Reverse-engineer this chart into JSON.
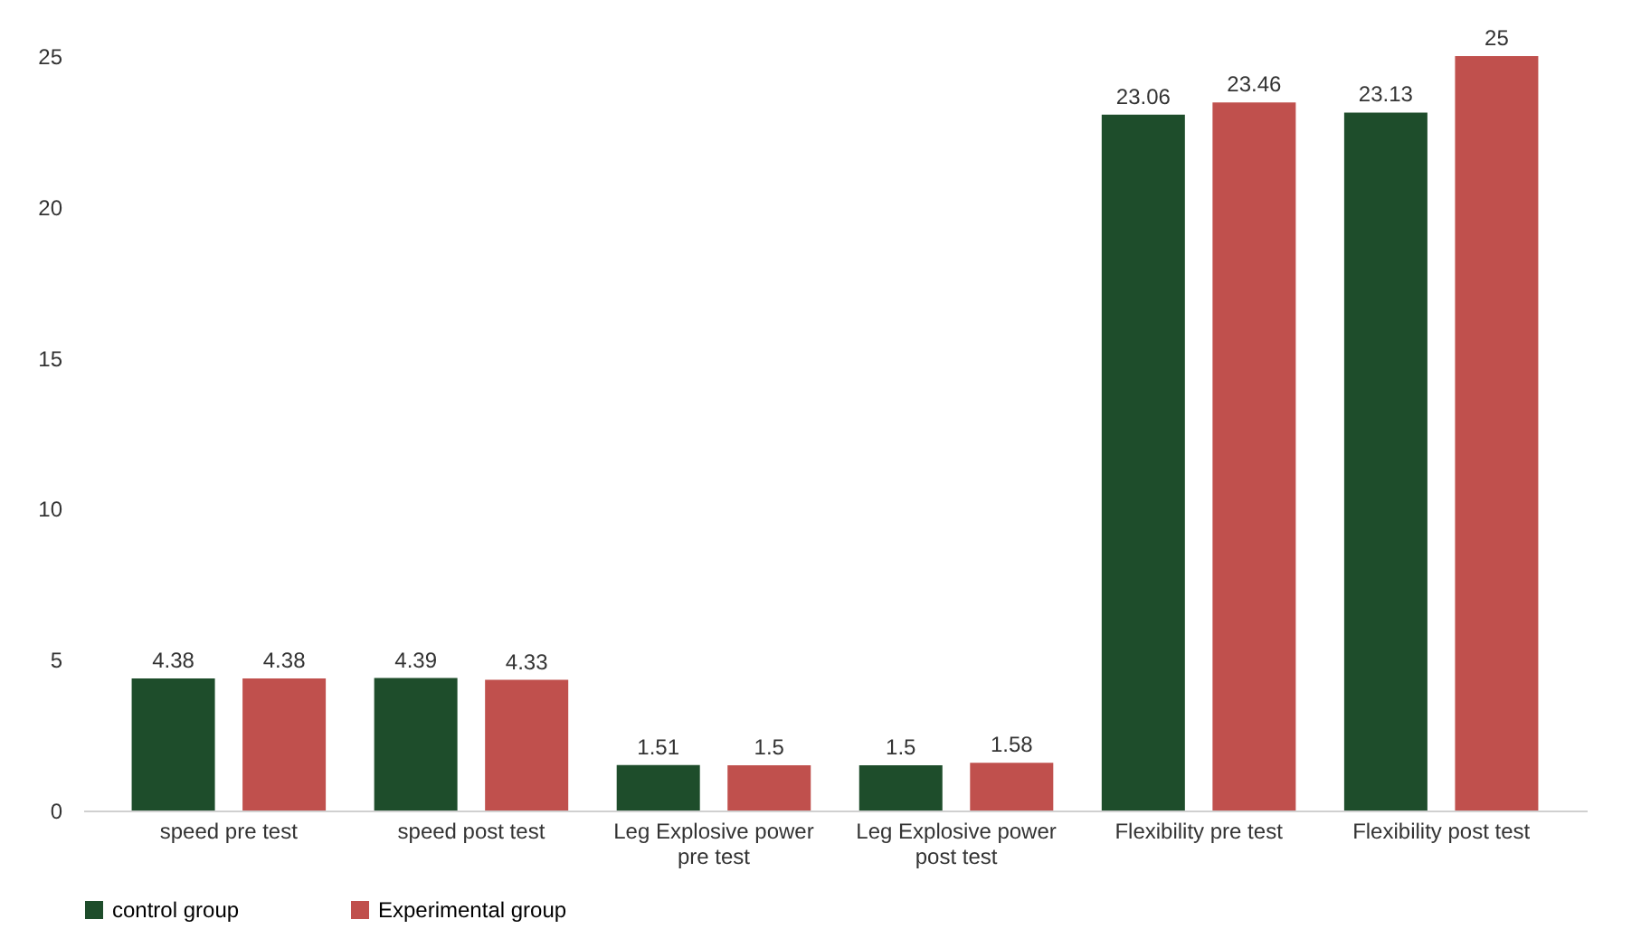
{
  "chart_data": {
    "type": "bar",
    "categories": [
      "speed pre test",
      "speed post test",
      "Leg Explosive power pre test",
      "Leg Explosive power post test",
      "Flexibility pre test",
      "Flexibility post test"
    ],
    "series": [
      {
        "name": "control group",
        "color": "#1e4d2b",
        "values": [
          4.38,
          4.39,
          1.51,
          1.5,
          23.06,
          23.13
        ]
      },
      {
        "name": "Experimental group",
        "color": "#c0504d",
        "values": [
          4.38,
          4.33,
          1.5,
          1.58,
          23.46,
          25
        ]
      }
    ],
    "ylim": [
      0,
      25
    ],
    "yticks": [
      0,
      5,
      10,
      15,
      20,
      25
    ],
    "grid": false,
    "legend": "bottom",
    "data_labels": true
  }
}
